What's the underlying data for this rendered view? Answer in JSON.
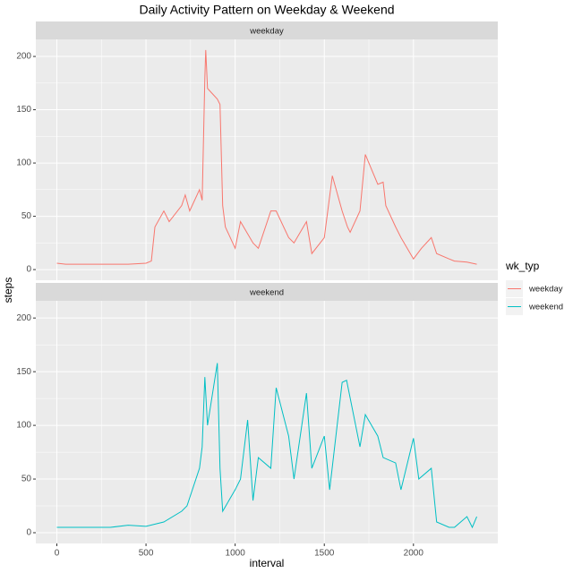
{
  "chart_data": {
    "type": "line",
    "title": "Daily Activity Pattern on Weekday & Weekend",
    "x_label": "interval",
    "y_label": "steps",
    "legend_title": "wk_typ",
    "xlim": [
      -118,
      2473
    ],
    "ylim": [
      -10,
      216
    ],
    "xticks": [
      0,
      500,
      1000,
      1500,
      2000
    ],
    "yticks": [
      0,
      50,
      100,
      150,
      200
    ],
    "grid": true,
    "series": [
      {
        "name": "weekday",
        "color": "#F8766D",
        "x": [
          0,
          50,
          100,
          200,
          300,
          400,
          500,
          530,
          550,
          600,
          630,
          700,
          720,
          745,
          800,
          815,
          830,
          835,
          845,
          900,
          915,
          930,
          945,
          1000,
          1030,
          1100,
          1130,
          1200,
          1230,
          1300,
          1330,
          1400,
          1430,
          1500,
          1545,
          1600,
          1630,
          1645,
          1700,
          1730,
          1800,
          1830,
          1845,
          1900,
          1930,
          2000,
          2045,
          2100,
          2130,
          2200,
          2230,
          2300,
          2355
        ],
        "values": [
          6,
          5,
          5,
          5,
          5,
          5,
          6,
          8,
          40,
          55,
          45,
          60,
          70,
          55,
          75,
          65,
          180,
          206,
          170,
          160,
          155,
          60,
          40,
          20,
          45,
          25,
          20,
          55,
          55,
          30,
          25,
          45,
          15,
          30,
          88,
          55,
          40,
          35,
          55,
          108,
          80,
          82,
          60,
          40,
          30,
          10,
          20,
          30,
          15,
          10,
          8,
          7,
          5
        ]
      },
      {
        "name": "weekend",
        "color": "#00BFC4",
        "x": [
          0,
          100,
          200,
          300,
          400,
          500,
          600,
          700,
          730,
          800,
          815,
          830,
          845,
          900,
          915,
          930,
          1000,
          1030,
          1070,
          1100,
          1130,
          1200,
          1230,
          1300,
          1330,
          1400,
          1430,
          1500,
          1530,
          1600,
          1625,
          1700,
          1730,
          1800,
          1830,
          1900,
          1930,
          2000,
          2030,
          2100,
          2130,
          2200,
          2230,
          2300,
          2330,
          2355
        ],
        "values": [
          5,
          5,
          5,
          5,
          7,
          6,
          10,
          20,
          25,
          60,
          80,
          145,
          100,
          158,
          60,
          20,
          40,
          50,
          105,
          30,
          70,
          60,
          135,
          90,
          50,
          130,
          60,
          90,
          40,
          140,
          142,
          80,
          110,
          90,
          70,
          65,
          40,
          88,
          50,
          60,
          10,
          5,
          5,
          15,
          5,
          15
        ]
      }
    ]
  }
}
